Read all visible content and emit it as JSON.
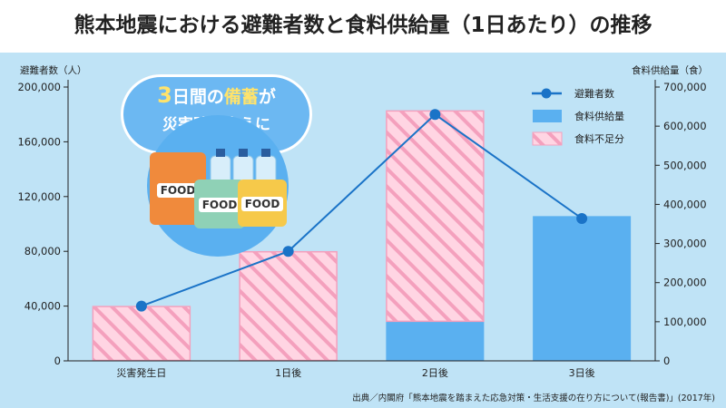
{
  "title": "熊本地震における避難者数と食料供給量（1日あたり）の推移",
  "axis_left_title": "避難者数（人）",
  "axis_right_title": "食料供給量（食）",
  "source": "出典／内閣府「熊本地震を踏まえた応急対策・生活支援の在り方について(報告書)」(2017年)",
  "illustration": {
    "headline_num": "3",
    "headline_a": "日間の",
    "headline_b": "備蓄",
    "headline_c": "が",
    "line2": "災害時の支えに",
    "food_label": "FOOD"
  },
  "colors": {
    "background": "#bfe3f6",
    "line": "#1a73c7",
    "supply": "#5ab0f0",
    "shortage_fill": "#ffd5e3",
    "shortage_stripe": "#f4a0bd"
  },
  "chart_data": {
    "type": "bar",
    "categories": [
      "災害発生日",
      "1日後",
      "2日後",
      "3日後"
    ],
    "y_left": {
      "label": "避難者数（人）",
      "lim": [
        0,
        200000
      ],
      "ticks": [
        "0",
        "40,000",
        "80,000",
        "120,000",
        "160,000",
        "200,000"
      ],
      "tick_values": [
        0,
        40000,
        80000,
        120000,
        160000,
        200000
      ]
    },
    "y_right": {
      "label": "食料供給量（食）",
      "lim": [
        0,
        700000
      ],
      "ticks": [
        "0",
        "100,000",
        "200,000",
        "300,000",
        "400,000",
        "500,000",
        "600,000",
        "700,000"
      ],
      "tick_values": [
        0,
        100000,
        200000,
        300000,
        400000,
        500000,
        600000,
        700000
      ]
    },
    "series": [
      {
        "name": "避難者数",
        "type": "line",
        "axis": "left",
        "values": [
          40000,
          80000,
          180000,
          104000
        ]
      },
      {
        "name": "食料供給量",
        "type": "bar",
        "axis": "right",
        "values": [
          0,
          0,
          100000,
          370000
        ]
      },
      {
        "name": "食料不足分",
        "type": "bar",
        "axis": "right",
        "stacked_on": "食料供給量",
        "values": [
          140000,
          280000,
          540000,
          0
        ]
      }
    ],
    "legend": {
      "position": "top-right",
      "entries": [
        "避難者数",
        "食料供給量",
        "食料不足分"
      ]
    },
    "grid": false
  }
}
